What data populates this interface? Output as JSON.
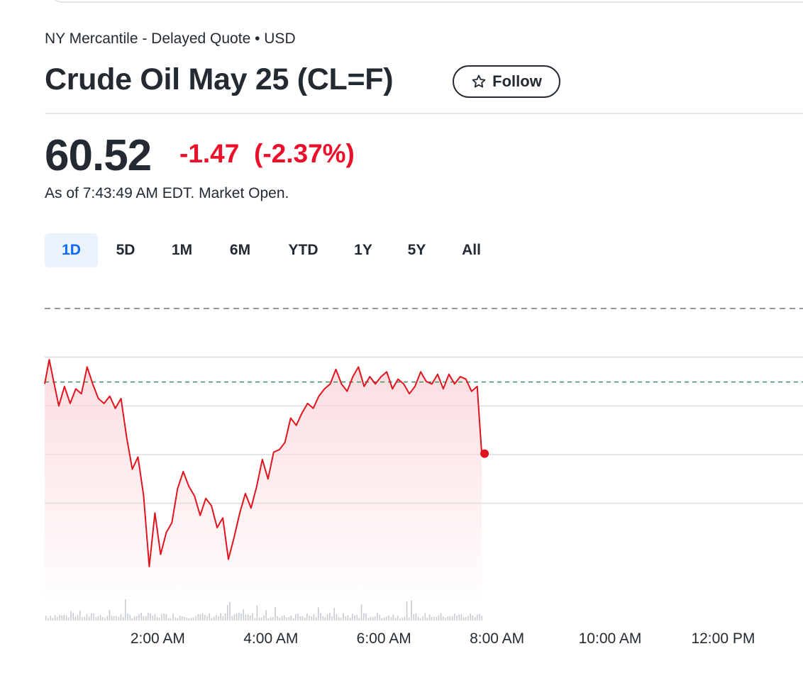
{
  "header": {
    "exchange": "NY Mercantile - Delayed Quote • USD",
    "title": "Crude Oil May 25 (CL=F)",
    "follow_label": "Follow"
  },
  "quote": {
    "price": "60.52",
    "change": "-1.47",
    "change_pct": "(-2.37%)",
    "as_of": "As of 7:43:49 AM EDT. Market Open."
  },
  "ranges": [
    "1D",
    "5D",
    "1M",
    "6M",
    "YTD",
    "1Y",
    "5Y",
    "All"
  ],
  "active_range": "1D",
  "colors": {
    "line": "#e0141e",
    "fill_top": "#fbd9dc",
    "reference_line": "#3f8f6c",
    "active_tab_bg": "#e8f3fd",
    "active_tab_text": "#0f69ff",
    "negative": "#eb0f29"
  },
  "chart_data": {
    "type": "line",
    "xlabel": "",
    "ylabel": "",
    "x_ticks": [
      "2:00 AM",
      "4:00 AM",
      "6:00 AM",
      "8:00 AM",
      "10:00 AM",
      "12:00 PM"
    ],
    "x_tick_hours": [
      2,
      4,
      6,
      8,
      10,
      12
    ],
    "xlim_hours": [
      0,
      13.4
    ],
    "ylim": [
      57.5,
      63.5
    ],
    "grid_y": [
      63.5,
      62.5,
      61.5,
      60.5,
      59.5
    ],
    "previous_close": 61.99,
    "last_point": 60.52,
    "series": [
      {
        "x_hours": [
          0.0,
          0.08,
          0.15,
          0.25,
          0.35,
          0.45,
          0.55,
          0.65,
          0.75,
          0.85,
          0.95,
          1.05,
          1.15,
          1.25,
          1.35,
          1.45,
          1.55,
          1.65,
          1.75,
          1.85,
          1.95,
          2.05,
          2.15,
          2.25,
          2.35,
          2.45,
          2.55,
          2.65,
          2.75,
          2.85,
          2.95,
          3.05,
          3.15,
          3.25,
          3.35,
          3.45,
          3.55,
          3.65,
          3.75,
          3.85,
          3.95,
          4.05,
          4.15,
          4.25,
          4.35,
          4.45,
          4.55,
          4.65,
          4.75,
          4.85,
          4.95,
          5.05,
          5.15,
          5.25,
          5.35,
          5.45,
          5.55,
          5.65,
          5.75,
          5.85,
          5.95,
          6.05,
          6.15,
          6.25,
          6.35,
          6.45,
          6.55,
          6.65,
          6.75,
          6.85,
          6.95,
          7.05,
          7.15,
          7.25,
          7.35,
          7.45,
          7.55,
          7.65,
          7.73
        ],
        "values": [
          61.95,
          62.45,
          62.05,
          61.5,
          61.9,
          61.55,
          61.85,
          61.75,
          62.3,
          61.95,
          61.65,
          61.55,
          61.7,
          61.45,
          61.65,
          60.85,
          60.2,
          60.45,
          59.65,
          58.2,
          59.3,
          58.45,
          58.9,
          59.1,
          59.8,
          60.15,
          59.85,
          59.65,
          59.25,
          59.6,
          59.45,
          59.0,
          59.2,
          58.35,
          58.8,
          59.3,
          59.7,
          59.4,
          59.85,
          60.4,
          60.0,
          60.55,
          60.6,
          60.75,
          61.25,
          61.1,
          61.35,
          61.55,
          61.45,
          61.7,
          61.85,
          61.95,
          62.25,
          61.95,
          61.8,
          62.1,
          62.3,
          61.9,
          62.1,
          61.95,
          62.1,
          62.2,
          61.85,
          62.05,
          61.95,
          61.75,
          61.9,
          62.2,
          62.0,
          61.95,
          62.15,
          61.85,
          62.15,
          61.95,
          62.1,
          62.05,
          61.8,
          61.9,
          60.52
        ]
      }
    ],
    "volume_note": "volume bars shown without axis"
  }
}
